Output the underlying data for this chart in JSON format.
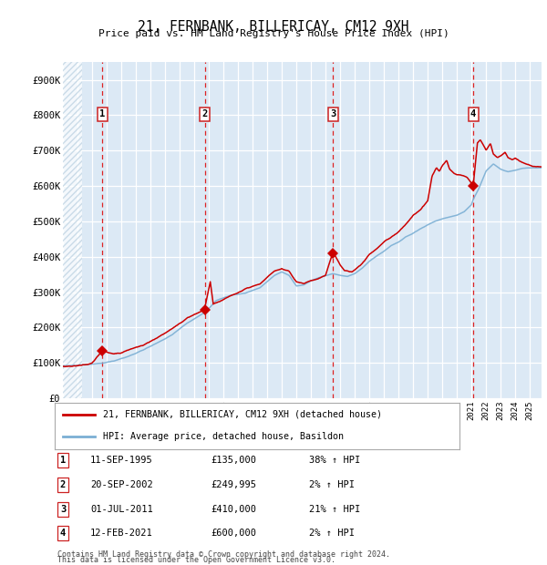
{
  "title": "21, FERNBANK, BILLERICAY, CM12 9XH",
  "subtitle": "Price paid vs. HM Land Registry's House Price Index (HPI)",
  "hpi_color": "#7bafd4",
  "price_color": "#cc0000",
  "bg_color": "#dce9f5",
  "hatch_color": "#b8cfe0",
  "ylabel_values": [
    0,
    100000,
    200000,
    300000,
    400000,
    500000,
    600000,
    700000,
    800000,
    900000
  ],
  "ylabel_labels": [
    "£0",
    "£100K",
    "£200K",
    "£300K",
    "£400K",
    "£500K",
    "£600K",
    "£700K",
    "£800K",
    "£900K"
  ],
  "xmin": 1993.0,
  "xmax": 2025.8,
  "ymin": 0,
  "ymax": 950000,
  "hatch_end": 1994.3,
  "sale_points": [
    {
      "year": 1995.7,
      "price": 135000,
      "label": "1"
    },
    {
      "year": 2002.72,
      "price": 249995,
      "label": "2"
    },
    {
      "year": 2011.5,
      "price": 410000,
      "label": "3"
    },
    {
      "year": 2021.12,
      "price": 600000,
      "label": "4"
    }
  ],
  "legend_items": [
    {
      "color": "#cc0000",
      "label": "21, FERNBANK, BILLERICAY, CM12 9XH (detached house)"
    },
    {
      "color": "#7bafd4",
      "label": "HPI: Average price, detached house, Basildon"
    }
  ],
  "table_rows": [
    {
      "num": "1",
      "date": "11-SEP-1995",
      "price": "£135,000",
      "change": "38% ↑ HPI"
    },
    {
      "num": "2",
      "date": "20-SEP-2002",
      "price": "£249,995",
      "change": "2% ↑ HPI"
    },
    {
      "num": "3",
      "date": "01-JUL-2011",
      "price": "£410,000",
      "change": "21% ↑ HPI"
    },
    {
      "num": "4",
      "date": "12-FEB-2021",
      "price": "£600,000",
      "change": "2% ↑ HPI"
    }
  ],
  "footer_line1": "Contains HM Land Registry data © Crown copyright and database right 2024.",
  "footer_line2": "This data is licensed under the Open Government Licence v3.0."
}
